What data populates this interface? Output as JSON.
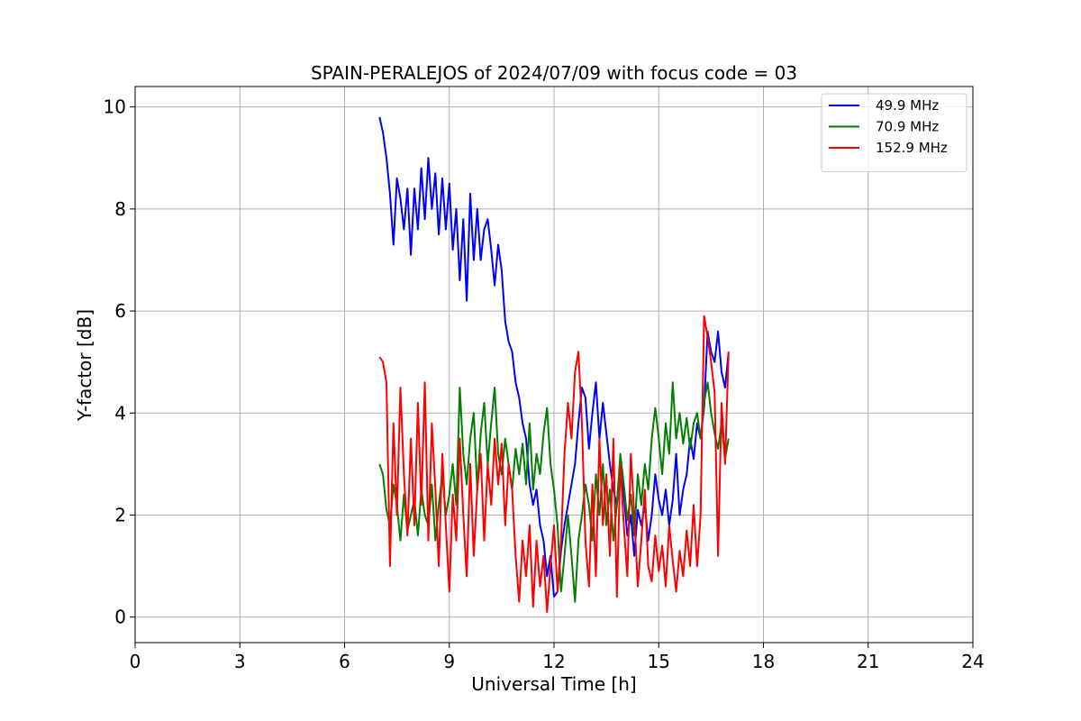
{
  "chart_data": {
    "type": "line",
    "title": "SPAIN-PERALEJOS of 2024/07/09 with focus code = 03",
    "xlabel": "Universal Time [h]",
    "ylabel": "Y-factor [dB]",
    "xlim": [
      0,
      24
    ],
    "ylim": [
      -0.5,
      10.4
    ],
    "xticks": [
      0,
      3,
      6,
      9,
      12,
      15,
      18,
      21,
      24
    ],
    "yticks": [
      0,
      2,
      4,
      6,
      8,
      10
    ],
    "grid": true,
    "legend_position": "top-right",
    "series": [
      {
        "name": "49.9 MHz",
        "color": "#0000ff",
        "x": [
          7.0,
          7.1,
          7.2,
          7.3,
          7.4,
          7.5,
          7.6,
          7.7,
          7.8,
          7.9,
          8.0,
          8.1,
          8.2,
          8.3,
          8.4,
          8.5,
          8.6,
          8.7,
          8.8,
          8.9,
          9.0,
          9.1,
          9.2,
          9.3,
          9.4,
          9.5,
          9.6,
          9.7,
          9.8,
          9.9,
          10.0,
          10.1,
          10.2,
          10.3,
          10.4,
          10.5,
          10.6,
          10.7,
          10.8,
          10.9,
          11.0,
          11.1,
          11.2,
          11.3,
          11.4,
          11.5,
          11.6,
          11.7,
          11.8,
          11.9,
          12.0,
          12.1,
          12.2,
          12.3,
          12.4,
          12.5,
          12.6,
          12.7,
          12.8,
          12.9,
          13.0,
          13.1,
          13.2,
          13.3,
          13.4,
          13.5,
          13.6,
          13.7,
          13.8,
          13.9,
          14.0,
          14.1,
          14.2,
          14.3,
          14.4,
          14.5,
          14.6,
          14.7,
          14.8,
          14.9,
          15.0,
          15.1,
          15.2,
          15.3,
          15.4,
          15.5,
          15.6,
          15.7,
          15.8,
          15.9,
          16.0,
          16.1,
          16.2,
          16.3,
          16.4,
          16.5,
          16.6,
          16.7,
          16.8,
          16.9,
          17.0
        ],
        "y": [
          9.8,
          9.5,
          9.0,
          8.3,
          7.3,
          8.6,
          8.2,
          7.6,
          8.4,
          7.1,
          8.4,
          7.6,
          8.8,
          7.8,
          9.0,
          8.0,
          8.7,
          7.5,
          8.6,
          7.6,
          8.5,
          7.2,
          8.0,
          6.6,
          7.8,
          6.2,
          8.3,
          7.0,
          8.0,
          7.0,
          7.6,
          7.8,
          7.2,
          6.5,
          7.3,
          6.8,
          5.8,
          5.4,
          5.2,
          4.6,
          4.3,
          3.8,
          3.5,
          2.6,
          2.2,
          2.5,
          1.8,
          1.5,
          0.8,
          1.2,
          0.4,
          0.5,
          1.3,
          1.8,
          2.2,
          2.6,
          3.0,
          3.8,
          4.5,
          4.3,
          3.3,
          4.0,
          4.6,
          3.5,
          4.2,
          3.6,
          3.0,
          2.5,
          2.2,
          3.0,
          2.4,
          1.6,
          2.0,
          1.2,
          2.1,
          1.8,
          2.2,
          1.5,
          2.0,
          2.8,
          2.3,
          2.0,
          2.5,
          1.8,
          2.3,
          3.2,
          2.0,
          2.5,
          2.8,
          3.5,
          3.1,
          3.8,
          3.5,
          4.1,
          5.6,
          5.2,
          5.0,
          5.6,
          4.8,
          4.5,
          5.2
        ]
      },
      {
        "name": "70.9 MHz",
        "color": "#008000",
        "x": [
          7.0,
          7.1,
          7.2,
          7.3,
          7.4,
          7.5,
          7.6,
          7.7,
          7.8,
          7.9,
          8.0,
          8.1,
          8.2,
          8.3,
          8.4,
          8.5,
          8.6,
          8.7,
          8.8,
          8.9,
          9.0,
          9.1,
          9.2,
          9.3,
          9.4,
          9.5,
          9.6,
          9.7,
          9.8,
          9.9,
          10.0,
          10.1,
          10.2,
          10.3,
          10.4,
          10.5,
          10.6,
          10.7,
          10.8,
          10.9,
          11.0,
          11.1,
          11.2,
          11.3,
          11.4,
          11.5,
          11.6,
          11.7,
          11.8,
          11.9,
          12.0,
          12.1,
          12.2,
          12.3,
          12.4,
          12.5,
          12.6,
          12.7,
          12.8,
          12.9,
          13.0,
          13.1,
          13.2,
          13.3,
          13.4,
          13.5,
          13.6,
          13.7,
          13.8,
          13.9,
          14.0,
          14.1,
          14.2,
          14.3,
          14.4,
          14.5,
          14.6,
          14.7,
          14.8,
          14.9,
          15.0,
          15.1,
          15.2,
          15.3,
          15.4,
          15.5,
          15.6,
          15.7,
          15.8,
          15.9,
          16.0,
          16.1,
          16.2,
          16.3,
          16.4,
          16.5,
          16.6,
          16.7,
          16.8,
          16.9,
          17.0
        ],
        "y": [
          3.0,
          2.8,
          2.1,
          1.8,
          2.6,
          2.2,
          1.5,
          2.4,
          1.7,
          2.0,
          2.3,
          1.6,
          2.5,
          2.0,
          1.8,
          2.6,
          1.5,
          2.2,
          2.8,
          2.0,
          2.4,
          3.0,
          2.2,
          4.5,
          3.2,
          2.6,
          3.5,
          4.0,
          2.5,
          3.6,
          4.2,
          3.0,
          3.8,
          4.5,
          3.2,
          2.8,
          3.5,
          3.0,
          2.5,
          3.3,
          2.8,
          3.4,
          2.6,
          3.8,
          2.5,
          3.2,
          2.8,
          3.6,
          4.1,
          3.0,
          2.5,
          1.8,
          0.5,
          1.2,
          2.0,
          1.2,
          0.3,
          1.5,
          2.0,
          2.6,
          2.2,
          1.5,
          2.8,
          2.0,
          3.0,
          1.8,
          2.5,
          1.5,
          2.2,
          3.2,
          2.6,
          1.9,
          2.4,
          1.6,
          2.8,
          2.2,
          3.0,
          2.5,
          3.5,
          4.1,
          3.5,
          2.8,
          3.8,
          3.2,
          4.6,
          3.5,
          4.0,
          3.4,
          3.9,
          3.3,
          3.8,
          4.0,
          3.5,
          4.2,
          4.6,
          4.0,
          3.6,
          3.3,
          3.8,
          3.1,
          3.5
        ]
      },
      {
        "name": "152.9 MHz",
        "color": "#ff0000",
        "x": [
          7.0,
          7.1,
          7.2,
          7.3,
          7.4,
          7.5,
          7.6,
          7.7,
          7.8,
          7.9,
          8.0,
          8.1,
          8.2,
          8.3,
          8.4,
          8.5,
          8.6,
          8.7,
          8.8,
          8.9,
          9.0,
          9.1,
          9.2,
          9.3,
          9.4,
          9.5,
          9.6,
          9.7,
          9.8,
          9.9,
          10.0,
          10.1,
          10.2,
          10.3,
          10.4,
          10.5,
          10.6,
          10.7,
          10.8,
          10.9,
          11.0,
          11.1,
          11.2,
          11.3,
          11.4,
          11.5,
          11.6,
          11.7,
          11.8,
          11.9,
          12.0,
          12.1,
          12.2,
          12.3,
          12.4,
          12.5,
          12.6,
          12.7,
          12.8,
          12.9,
          13.0,
          13.1,
          13.2,
          13.3,
          13.4,
          13.5,
          13.6,
          13.7,
          13.8,
          13.9,
          14.0,
          14.1,
          14.2,
          14.3,
          14.4,
          14.5,
          14.6,
          14.7,
          14.8,
          14.9,
          15.0,
          15.1,
          15.2,
          15.3,
          15.4,
          15.5,
          15.6,
          15.7,
          15.8,
          15.9,
          16.0,
          16.1,
          16.2,
          16.3,
          16.4,
          16.5,
          16.6,
          16.7,
          16.8,
          16.9,
          17.0
        ],
        "y": [
          5.1,
          5.0,
          4.6,
          1.0,
          3.8,
          2.0,
          4.5,
          2.8,
          1.6,
          3.5,
          1.8,
          4.2,
          2.2,
          4.6,
          1.5,
          3.8,
          2.5,
          1.0,
          3.2,
          1.8,
          0.5,
          2.4,
          1.5,
          3.5,
          2.0,
          0.8,
          3.0,
          1.2,
          2.5,
          3.2,
          1.5,
          3.0,
          2.2,
          3.5,
          2.6,
          3.4,
          1.8,
          3.0,
          2.5,
          1.2,
          0.3,
          1.5,
          0.8,
          1.8,
          0.2,
          1.5,
          0.6,
          1.2,
          0.1,
          1.0,
          1.8,
          0.5,
          1.5,
          3.2,
          4.2,
          3.5,
          4.8,
          5.2,
          3.8,
          1.5,
          0.6,
          2.6,
          0.8,
          3.5,
          1.8,
          2.8,
          1.2,
          3.5,
          0.4,
          3.0,
          1.8,
          0.8,
          3.2,
          2.0,
          0.6,
          1.5,
          2.5,
          1.0,
          0.7,
          1.6,
          0.9,
          1.4,
          0.6,
          1.8,
          1.1,
          0.5,
          1.3,
          0.8,
          1.7,
          1.0,
          2.2,
          1.0,
          2.0,
          5.9,
          5.5,
          5.0,
          4.4,
          1.2,
          4.2,
          3.0,
          5.2
        ]
      }
    ]
  }
}
